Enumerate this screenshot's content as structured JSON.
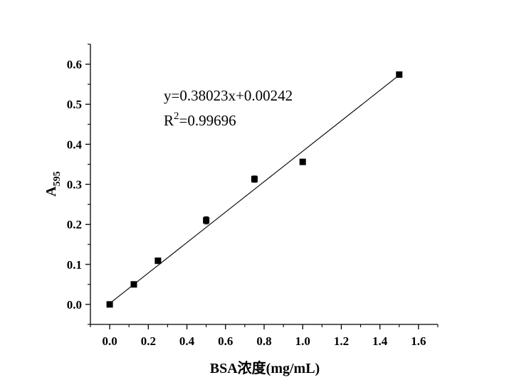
{
  "chart_data": {
    "type": "scatter",
    "xlabel": "BSA浓度(mg/mL)",
    "ylabel": {
      "main": "A",
      "subscript": "595"
    },
    "xlim": [
      -0.1,
      1.7
    ],
    "ylim": [
      -0.05,
      0.65
    ],
    "xticks": [
      0.0,
      0.2,
      0.4,
      0.6,
      0.8,
      1.0,
      1.2,
      1.4,
      1.6
    ],
    "xtick_labels": [
      "0.0",
      "0.2",
      "0.4",
      "0.6",
      "0.8",
      "1.0",
      "1.2",
      "1.4",
      "1.6"
    ],
    "yticks": [
      0.0,
      0.1,
      0.2,
      0.3,
      0.4,
      0.5,
      0.6
    ],
    "ytick_labels": [
      "0.0",
      "0.1",
      "0.2",
      "0.3",
      "0.4",
      "0.5",
      "0.6"
    ],
    "grid": false,
    "series": [
      {
        "marker": "square",
        "color": "#000000",
        "x": [
          0.0,
          0.125,
          0.25,
          0.5,
          0.75,
          1.0,
          1.5
        ],
        "y": [
          0.0,
          0.05,
          0.109,
          0.21,
          0.313,
          0.356,
          0.574
        ],
        "error": [
          0.003,
          0.004,
          0.004,
          0.009,
          0.008,
          0.004,
          0.003
        ]
      }
    ],
    "fit_line": {
      "slope": 0.38023,
      "intercept": 0.00242,
      "x_range": [
        0.0,
        1.5
      ]
    },
    "annotation": {
      "equation": "y=0.38023x+0.00242",
      "r2_prefix": "R",
      "r2_sup": "2",
      "r2_value": "=0.99696"
    }
  }
}
